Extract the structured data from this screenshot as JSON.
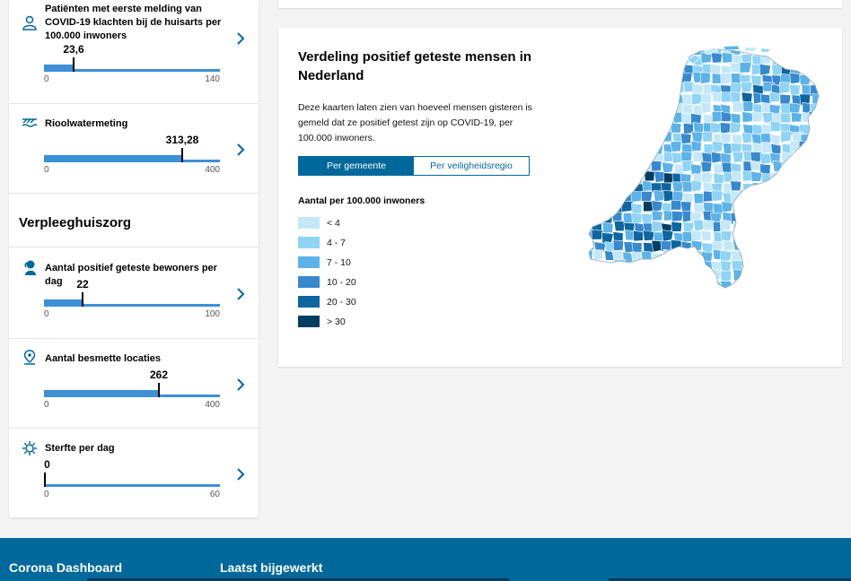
{
  "sidebar": {
    "metrics_top": [
      {
        "title": "Patiënten met eerste melding van COVID-19 klachten bij de huisarts per 100.000 inwoners",
        "value": "23,6",
        "fraction": 0.1686,
        "min": "0",
        "max": "140",
        "icon": "doctor-icon"
      },
      {
        "title": "Rioolwatermeting",
        "value": "313,28",
        "fraction": 0.7832,
        "min": "0",
        "max": "400",
        "icon": "sewer-icon"
      }
    ],
    "section_title": "Verpleeghuiszorg",
    "metrics_bottom": [
      {
        "title": "Aantal positief geteste bewoners per dag",
        "value": "22",
        "fraction": 0.22,
        "min": "0",
        "max": "100",
        "icon": "elderly-person-icon"
      },
      {
        "title": "Aantal besmette locaties",
        "value": "262",
        "fraction": 0.655,
        "min": "0",
        "max": "400",
        "icon": "location-pin-icon"
      },
      {
        "title": "Sterfte per dag",
        "value": "0",
        "fraction": 0.0,
        "min": "0",
        "max": "60",
        "icon": "virus-icon"
      }
    ]
  },
  "map_card": {
    "title": "Verdeling positief geteste mensen in Nederland",
    "description": "Deze kaarten laten zien van hoeveel mensen gisteren is gemeld dat ze positief getest zijn op COVID-19, per 100.000 inwoners.",
    "toggle": {
      "active": "Per gemeente",
      "inactive": "Per veiligheidsregio"
    },
    "legend_title": "Aantal per 100.000 inwoners",
    "legend": [
      {
        "label": "< 4",
        "color": "#c4e8fa"
      },
      {
        "label": "4 - 7",
        "color": "#8fd3f5"
      },
      {
        "label": "7 - 10",
        "color": "#5db2e8"
      },
      {
        "label": "10 - 20",
        "color": "#3889ce"
      },
      {
        "label": "20 - 30",
        "color": "#0e65a0"
      },
      {
        "label": "> 30",
        "color": "#023e62"
      }
    ]
  },
  "footer": {
    "col1": "Corona Dashboard",
    "col2": "Laatst bijgewerkt"
  }
}
